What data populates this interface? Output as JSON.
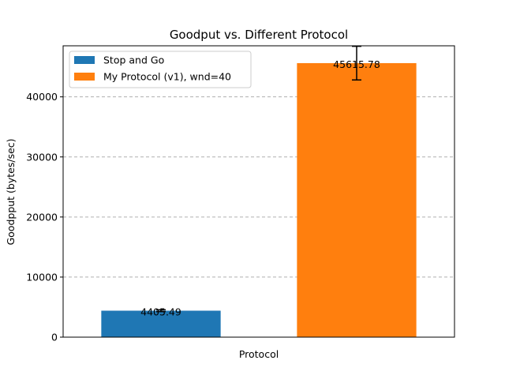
{
  "chart_data": {
    "type": "bar",
    "title": "Goodput vs. Different Protocol",
    "xlabel": "Protocol",
    "ylabel": "Goodpput (bytes/sec)",
    "ylim": [
      0,
      48500
    ],
    "yticks": [
      0,
      10000,
      20000,
      30000,
      40000
    ],
    "grid": "y-dashed",
    "legend_position": "top-left",
    "series": [
      {
        "name": "Stop and Go",
        "value": 4405.49,
        "label": "4405.49",
        "error": 150,
        "color": "#1f77b4"
      },
      {
        "name": "My Protocol (v1), wnd=40",
        "value": 45615.78,
        "label": "45615.78",
        "error": 2800,
        "color": "#ff7f0e"
      }
    ]
  }
}
